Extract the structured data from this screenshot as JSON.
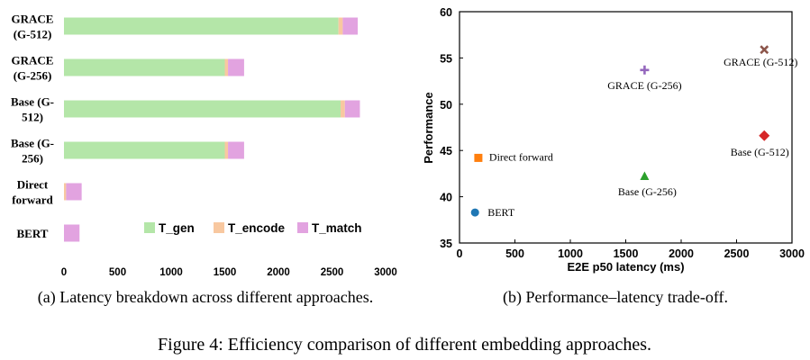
{
  "figure_caption": "Figure 4: Efficiency comparison of different embedding approaches.",
  "colors": {
    "gen": "#b4e6a8",
    "encode": "#f8c8a0",
    "match": "#e2a3e0"
  },
  "chart_data": [
    {
      "type": "bar",
      "orientation": "horizontal",
      "stacked": true,
      "subcaption": "(a) Latency breakdown across different approaches.",
      "categories": [
        [
          "GRACE",
          "(G-512)"
        ],
        [
          "GRACE",
          "(G-256)"
        ],
        [
          "Base (G-",
          "512)"
        ],
        [
          "Base (G-",
          "256)"
        ],
        [
          "Direct",
          "forward"
        ],
        [
          "BERT"
        ]
      ],
      "series": [
        {
          "name": "T_gen",
          "values": [
            2560,
            1500,
            2580,
            1500,
            0,
            0
          ]
        },
        {
          "name": "T_encode",
          "values": [
            40,
            30,
            40,
            30,
            20,
            0
          ]
        },
        {
          "name": "T_match",
          "values": [
            140,
            150,
            140,
            150,
            145,
            145
          ]
        }
      ],
      "xticks": [
        "0",
        "500",
        "1000",
        "1500",
        "2000",
        "2500",
        "3000"
      ],
      "xlim": [
        0,
        3000
      ],
      "legend_position": "bottom-right"
    },
    {
      "type": "scatter",
      "subcaption": "(b) Performance–latency trade-off.",
      "xlabel": "E2E p50 latency (ms)",
      "ylabel": "Performance",
      "xlim": [
        0,
        3000
      ],
      "ylim": [
        35,
        60
      ],
      "xticks": [
        "0",
        "500",
        "1000",
        "1500",
        "2000",
        "2500",
        "3000"
      ],
      "yticks": [
        "35",
        "40",
        "45",
        "50",
        "55",
        "60"
      ],
      "points": [
        {
          "label": "GRACE (G-512)",
          "x": 2750,
          "y": 55.9,
          "marker": "x",
          "color": "#8c564b"
        },
        {
          "label": "GRACE (G-256)",
          "x": 1670,
          "y": 53.7,
          "marker": "plus",
          "color": "#9467bd"
        },
        {
          "label": "Base (G-512)",
          "x": 2750,
          "y": 46.6,
          "marker": "diamond",
          "color": "#d62728"
        },
        {
          "label": "Direct forward",
          "x": 170,
          "y": 44.2,
          "marker": "square",
          "color": "#ff7f0e"
        },
        {
          "label": "Base (G-256)",
          "x": 1670,
          "y": 42.2,
          "marker": "triangle",
          "color": "#2ca02c"
        },
        {
          "label": "BERT",
          "x": 140,
          "y": 38.3,
          "marker": "circle",
          "color": "#1f77b4"
        }
      ]
    }
  ]
}
